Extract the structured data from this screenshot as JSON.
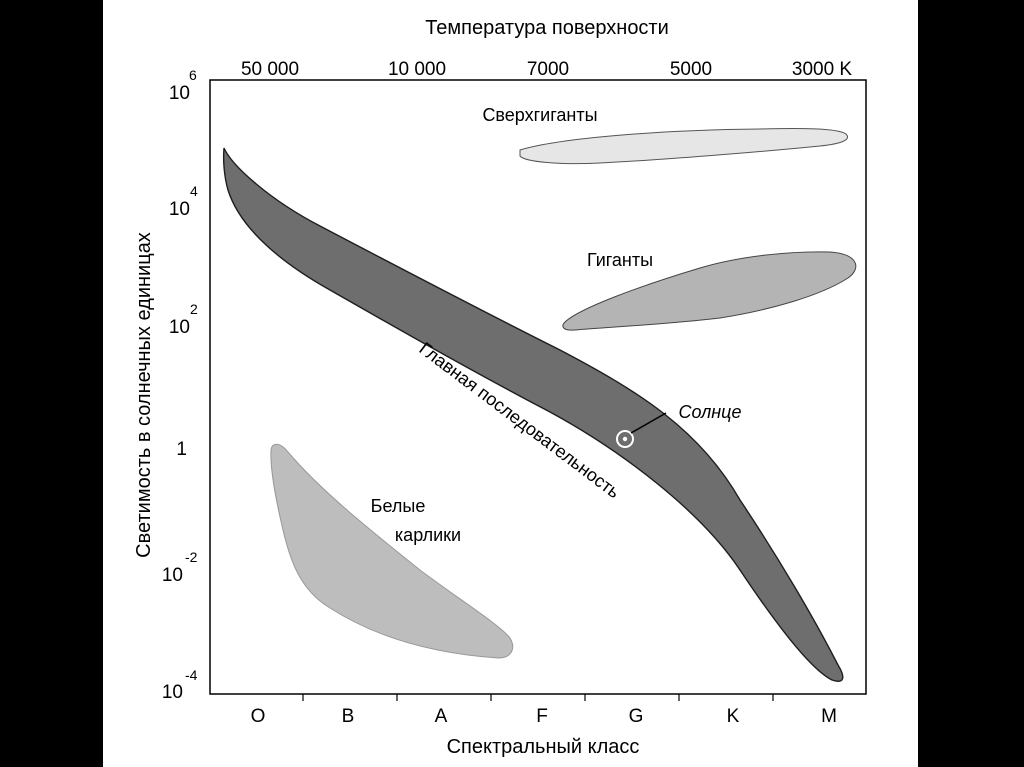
{
  "diagram": {
    "title_top": "Температура  поверхности",
    "temperatures": [
      "50 000",
      "10 000",
      "7000",
      "5000",
      "3000 K"
    ],
    "y_axis_label": "Светимость  в  солнечных  единицах",
    "luminosity_ticks": [
      {
        "base": "10",
        "exp": "6"
      },
      {
        "base": "10",
        "exp": "4"
      },
      {
        "base": "10",
        "exp": "2"
      },
      {
        "base": "1",
        "exp": ""
      },
      {
        "base": "10",
        "exp": "-2"
      },
      {
        "base": "10",
        "exp": "-4"
      }
    ],
    "spectral_classes": [
      "O",
      "B",
      "A",
      "F",
      "G",
      "K",
      "M"
    ],
    "x_axis_label": "Спектральный  класс",
    "regions": {
      "supergiants": "Сверхгиганты",
      "giants": "Гиганты",
      "main_sequence": "Главная  последовательность",
      "white_dwarfs_line1": "Белые",
      "white_dwarfs_line2": "карлики"
    },
    "sun_label": "Солнце",
    "colors": {
      "main_sequence": "#6e6e6e",
      "giants": "#b4b4b4",
      "supergiants": "#e6e6e6",
      "white_dwarfs": "#bdbdbd"
    }
  }
}
